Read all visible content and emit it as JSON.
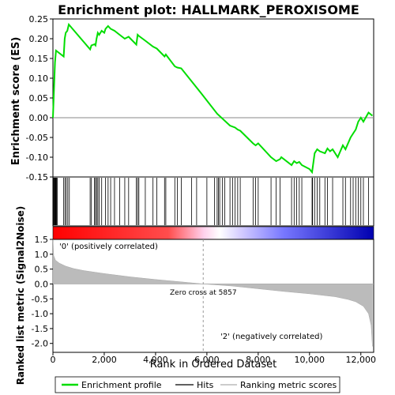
{
  "chart_data": {
    "type": "line",
    "title": "Enrichment plot: HALLMARK_PEROXISOME",
    "es_panel": {
      "ylabel": "Enrichment score (ES)",
      "ylim": [
        -0.15,
        0.25
      ],
      "yticks": [
        "0.25",
        "0.20",
        "0.15",
        "0.10",
        "0.05",
        "0.00",
        "-0.05",
        "-0.10",
        "-0.15"
      ],
      "ytick_values": [
        0.25,
        0.2,
        0.15,
        0.1,
        0.05,
        0.0,
        -0.05,
        -0.1,
        -0.15
      ],
      "series": [
        {
          "name": "Enrichment profile",
          "color": "#00cc00",
          "x": [
            0,
            40,
            80,
            120,
            160,
            420,
            460,
            500,
            560,
            620,
            1450,
            1500,
            1620,
            1660,
            1700,
            1750,
            1800,
            1900,
            2000,
            2050,
            2150,
            2250,
            2400,
            2600,
            2800,
            2950,
            3250,
            3300,
            3350,
            3600,
            3900,
            4050,
            4350,
            4400,
            4750,
            4850,
            5000,
            5800,
            6400,
            6900,
            7100,
            7200,
            7300,
            7800,
            7900,
            8000,
            8500,
            8700,
            8850,
            8900,
            9300,
            9400,
            9500,
            9600,
            9700,
            10000,
            10100,
            10120,
            10200,
            10300,
            10400,
            10600,
            10700,
            10800,
            10900,
            11100,
            11300,
            11400,
            11600,
            11700,
            11800,
            11900,
            12000,
            12100,
            12300,
            12450
          ],
          "y": [
            0.0,
            0.07,
            0.14,
            0.17,
            0.168,
            0.155,
            0.2,
            0.215,
            0.22,
            0.236,
            0.173,
            0.183,
            0.186,
            0.183,
            0.2,
            0.215,
            0.21,
            0.22,
            0.215,
            0.225,
            0.232,
            0.225,
            0.22,
            0.21,
            0.2,
            0.205,
            0.185,
            0.21,
            0.207,
            0.195,
            0.18,
            0.175,
            0.155,
            0.16,
            0.13,
            0.127,
            0.125,
            0.06,
            0.01,
            -0.02,
            -0.025,
            -0.03,
            -0.033,
            -0.065,
            -0.07,
            -0.065,
            -0.1,
            -0.11,
            -0.105,
            -0.1,
            -0.12,
            -0.11,
            -0.115,
            -0.112,
            -0.12,
            -0.13,
            -0.138,
            -0.128,
            -0.09,
            -0.08,
            -0.085,
            -0.09,
            -0.078,
            -0.085,
            -0.08,
            -0.1,
            -0.07,
            -0.08,
            -0.05,
            -0.04,
            -0.03,
            -0.01,
            0.0,
            -0.01,
            0.013,
            0.005
          ]
        }
      ]
    },
    "hits": [
      15,
      35,
      60,
      80,
      100,
      120,
      140,
      170,
      420,
      470,
      520,
      580,
      640,
      1450,
      1500,
      1620,
      1660,
      1700,
      1750,
      1800,
      1900,
      2050,
      2150,
      2250,
      2400,
      2600,
      2800,
      2950,
      3250,
      3300,
      3350,
      3600,
      3900,
      4050,
      4350,
      4400,
      4750,
      4850,
      5000,
      5400,
      5600,
      6000,
      6300,
      6400,
      6450,
      6500,
      6600,
      6700,
      6900,
      7000,
      7100,
      7200,
      7300,
      7800,
      7900,
      8000,
      8500,
      8700,
      8850,
      9300,
      9400,
      9500,
      9600,
      9700,
      10100,
      10120,
      10200,
      10300,
      10400,
      10600,
      10700,
      10900,
      11300,
      11400,
      11600,
      11700,
      11800,
      11900,
      12000,
      12100,
      12300
    ],
    "ranked_metric": {
      "ylabel": "Ranked list metric (Signal2Noise)",
      "xlabel": "Rank in Ordered Dataset",
      "ylim": [
        -2.3,
        1.5
      ],
      "yticks": [
        "1.5",
        "1.0",
        "0.5",
        "0.0",
        "-0.5",
        "-1.0",
        "-1.5",
        "-2.0"
      ],
      "ytick_values": [
        1.5,
        1.0,
        0.5,
        0.0,
        -0.5,
        -1.0,
        -1.5,
        -2.0
      ],
      "xticks": [
        "0",
        "2,000",
        "4,000",
        "6,000",
        "8,000",
        "10,000",
        "12,000"
      ],
      "xtick_values": [
        0,
        2000,
        4000,
        6000,
        8000,
        10000,
        12000
      ],
      "xlim": [
        0,
        12500
      ],
      "profile_x": [
        0,
        30,
        100,
        250,
        500,
        800,
        1200,
        2000,
        3000,
        4000,
        5000,
        5857,
        7000,
        8000,
        9000,
        10000,
        11000,
        11500,
        11800,
        12100,
        12300,
        12400,
        12450
      ],
      "profile_y": [
        1.5,
        0.95,
        0.8,
        0.7,
        0.6,
        0.52,
        0.45,
        0.35,
        0.24,
        0.15,
        0.07,
        0.0,
        -0.07,
        -0.16,
        -0.25,
        -0.33,
        -0.43,
        -0.52,
        -0.6,
        -0.75,
        -1.0,
        -1.4,
        -2.1
      ],
      "zero_cross_label": "Zero cross at 5857",
      "zero_cross_x": 5857,
      "positive_label": "'0' (positively correlated)",
      "negative_label": "'2' (negatively correlated)"
    },
    "legend": {
      "placement": "bottom",
      "items": [
        {
          "label": "Enrichment profile",
          "color": "#00cc00",
          "kind": "line"
        },
        {
          "label": "Hits",
          "color": "#000000",
          "kind": "line"
        },
        {
          "label": "Ranking metric scores",
          "color": "#bbbbbb",
          "kind": "line"
        }
      ]
    },
    "colors": {
      "positive": "#ff0000",
      "negative": "#0000cc",
      "positive_text": "#cc0000",
      "negative_text": "#0000cc",
      "zero_cross_text": "#000000"
    }
  }
}
